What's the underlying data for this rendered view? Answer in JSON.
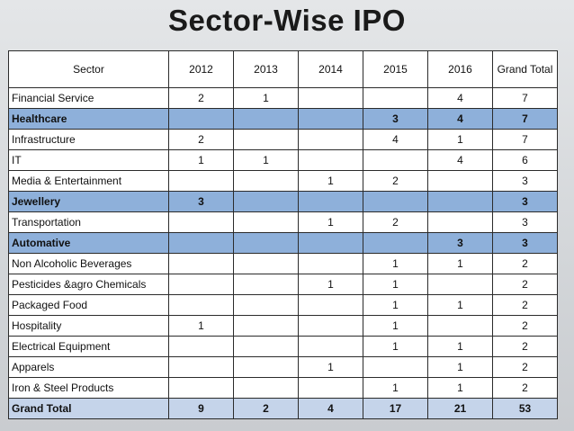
{
  "title": "Sector-Wise IPO",
  "table": {
    "headers": [
      "Sector",
      "2012",
      "2013",
      "2014",
      "2015",
      "2016",
      "Grand Total"
    ],
    "rows": [
      {
        "sector": "Financial Service",
        "v2012": "2",
        "v2013": "1",
        "v2014": "",
        "v2015": "",
        "v2016": "4",
        "total": "7",
        "bold": false,
        "highlight": false
      },
      {
        "sector": "Healthcare",
        "v2012": "",
        "v2013": "",
        "v2014": "",
        "v2015": "3",
        "v2016": "4",
        "total": "7",
        "bold": true,
        "highlight": true
      },
      {
        "sector": "Infrastructure",
        "v2012": "2",
        "v2013": "",
        "v2014": "",
        "v2015": "4",
        "v2016": "1",
        "total": "7",
        "bold": false,
        "highlight": false
      },
      {
        "sector": "IT",
        "v2012": "1",
        "v2013": "1",
        "v2014": "",
        "v2015": "",
        "v2016": "4",
        "total": "6",
        "bold": false,
        "highlight": false
      },
      {
        "sector": "Media & Entertainment",
        "v2012": "",
        "v2013": "",
        "v2014": "1",
        "v2015": "2",
        "v2016": "",
        "total": "3",
        "bold": false,
        "highlight": false
      },
      {
        "sector": "Jewellery",
        "v2012": "3",
        "v2013": "",
        "v2014": "",
        "v2015": "",
        "v2016": "",
        "total": "3",
        "bold": true,
        "highlight": true
      },
      {
        "sector": "Transportation",
        "v2012": "",
        "v2013": "",
        "v2014": "1",
        "v2015": "2",
        "v2016": "",
        "total": "3",
        "bold": false,
        "highlight": false
      },
      {
        "sector": "Automative",
        "v2012": "",
        "v2013": "",
        "v2014": "",
        "v2015": "",
        "v2016": "3",
        "total": "3",
        "bold": true,
        "highlight": true
      },
      {
        "sector": "Non Alcoholic Beverages",
        "v2012": "",
        "v2013": "",
        "v2014": "",
        "v2015": "1",
        "v2016": "1",
        "total": "2",
        "bold": false,
        "highlight": false
      },
      {
        "sector": "Pesticides &agro Chemicals",
        "v2012": "",
        "v2013": "",
        "v2014": "1",
        "v2015": "1",
        "v2016": "",
        "total": "2",
        "bold": false,
        "highlight": false
      },
      {
        "sector": "Packaged Food",
        "v2012": "",
        "v2013": "",
        "v2014": "",
        "v2015": "1",
        "v2016": "1",
        "total": "2",
        "bold": false,
        "highlight": false
      },
      {
        "sector": "Hospitality",
        "v2012": "1",
        "v2013": "",
        "v2014": "",
        "v2015": "1",
        "v2016": "",
        "total": "2",
        "bold": false,
        "highlight": false
      },
      {
        "sector": "Electrical Equipment",
        "v2012": "",
        "v2013": "",
        "v2014": "",
        "v2015": "1",
        "v2016": "1",
        "total": "2",
        "bold": false,
        "highlight": false
      },
      {
        "sector": "Apparels",
        "v2012": "",
        "v2013": "",
        "v2014": "1",
        "v2015": "",
        "v2016": "1",
        "total": "2",
        "bold": false,
        "highlight": false
      },
      {
        "sector": "Iron & Steel Products",
        "v2012": "",
        "v2013": "",
        "v2014": "",
        "v2015": "1",
        "v2016": "1",
        "total": "2",
        "bold": false,
        "highlight": false
      }
    ],
    "grand_total": {
      "sector": "Grand Total",
      "v2012": "9",
      "v2013": "2",
      "v2014": "4",
      "v2015": "17",
      "v2016": "21",
      "total": "53"
    }
  },
  "colors": {
    "highlight_row": "#8eb0da",
    "total_row": "#c5d4ea",
    "background": "#d4d7da"
  }
}
